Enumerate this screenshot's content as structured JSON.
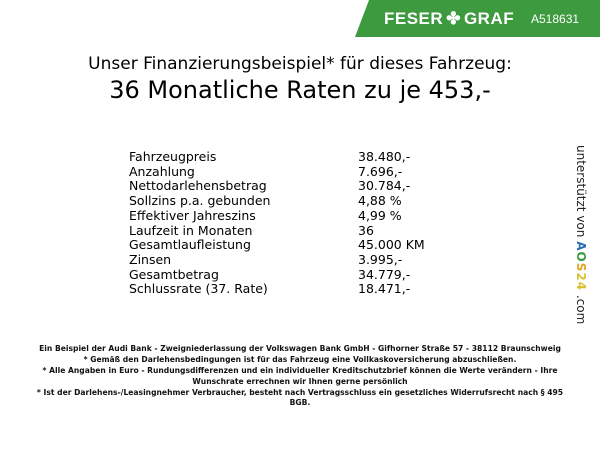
{
  "header": {
    "brand": "FESER",
    "brand2": "GRAF",
    "brand_color": "#3e9a3f",
    "vehicle_code": "A518631"
  },
  "title": {
    "line1": "Unser Finanzierungsbeispiel* für dieses Fahrzeug:",
    "line2": "36 Monatliche Raten zu je 453,-"
  },
  "rows": [
    {
      "label": "Fahrzeugpreis",
      "value": "38.480,-"
    },
    {
      "label": "Anzahlung",
      "value": "7.696,-"
    },
    {
      "label": "Nettodarlehensbetrag",
      "value": "30.784,-"
    },
    {
      "label": "Sollzins p.a. gebunden",
      "value": "4,88 %"
    },
    {
      "label": "Effektiver Jahreszins",
      "value": "4,99 %"
    },
    {
      "label": "Laufzeit in Monaten",
      "value": "36"
    },
    {
      "label": "Gesamtlaufleistung",
      "value": "45.000 KM"
    },
    {
      "label": "Zinsen",
      "value": "3.995,-"
    },
    {
      "label": "Gesamtbetrag",
      "value": "34.779,-"
    },
    {
      "label": "Schlussrate (37. Rate)",
      "value": "18.471,-"
    }
  ],
  "side": {
    "text": "unterstützt von",
    "logo": "AOS24",
    "suffix": ".com"
  },
  "footer": [
    "Ein Beispiel der Audi Bank - Zweigniederlassung der Volkswagen Bank GmbH - Gifhorner Straße 57 - 38112 Braunschweig",
    "* Gemäß den Darlehensbedingungen ist für das Fahrzeug eine Vollkaskoversicherung abzuschließen.",
    "* Alle Angaben in Euro - Rundungsdifferenzen und ein individueller Kreditschutzbrief können die Werte verändern - Ihre Wunschrate errechnen wir Ihnen gerne persönlich",
    "* Ist der Darlehens-/Leasingnehmer Verbraucher, besteht nach Vertragsschluss ein gesetzliches Widerrufsrecht nach § 495 BGB."
  ]
}
